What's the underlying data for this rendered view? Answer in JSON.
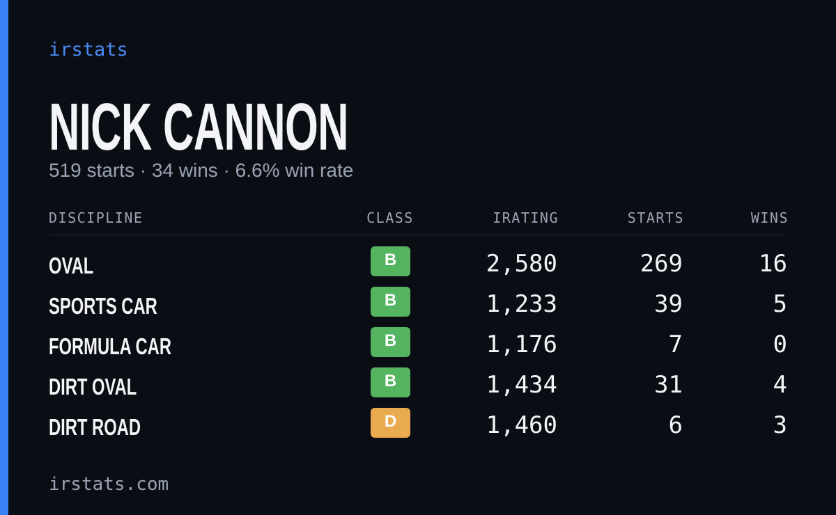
{
  "brand": "irstats",
  "header": {
    "title": "NICK CANNON",
    "subtitle": "519 starts · 34 wins · 6.6% win rate"
  },
  "table": {
    "columns": [
      "DISCIPLINE",
      "CLASS",
      "IRATING",
      "STARTS",
      "WINS"
    ],
    "rows": [
      [
        "OVAL",
        "B",
        "2,580",
        "269",
        "16"
      ],
      [
        "SPORTS CAR",
        "B",
        "1,233",
        "39",
        "5"
      ],
      [
        "FORMULA CAR",
        "B",
        "1,176",
        "7",
        "0"
      ],
      [
        "DIRT OVAL",
        "B",
        "1,434",
        "31",
        "4"
      ],
      [
        "DIRT ROAD",
        "D",
        "1,460",
        "6",
        "3"
      ]
    ],
    "class_colors": {
      "B": "#54b460",
      "D": "#eaab50"
    }
  },
  "footer": "irstats.com"
}
